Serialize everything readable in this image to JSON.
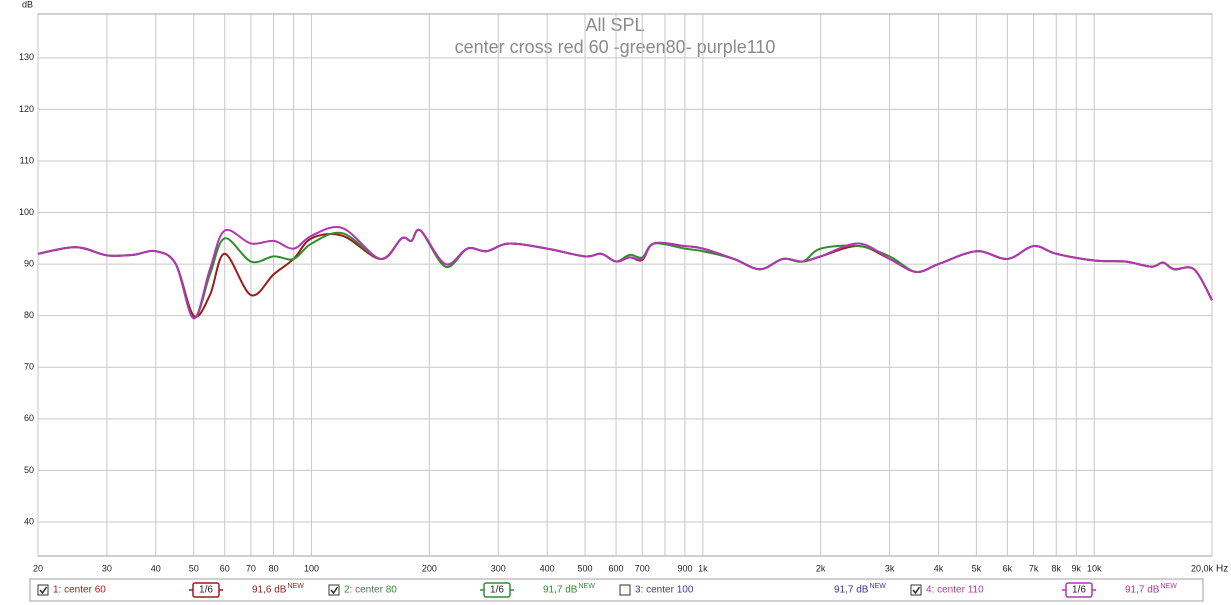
{
  "chart_data": {
    "type": "line",
    "title": "All SPL",
    "subtitle": "center cross red 60 -green80- purple110",
    "y_label": "dB",
    "x_label": "Hz",
    "x_scale": "log",
    "grid": true,
    "xlim": [
      20,
      20000
    ],
    "ylim": [
      33.4,
      138.5
    ],
    "yticks": [
      40,
      50,
      60,
      70,
      80,
      90,
      100,
      110,
      120,
      130
    ],
    "xticks": [
      20,
      30,
      40,
      50,
      60,
      70,
      80,
      100,
      200,
      300,
      400,
      500,
      600,
      700,
      900,
      {
        "value": 1000,
        "label": "1k"
      },
      {
        "value": 2000,
        "label": "2k"
      },
      {
        "value": 3000,
        "label": "3k"
      },
      {
        "value": 4000,
        "label": "4k"
      },
      {
        "value": 5000,
        "label": "5k"
      },
      {
        "value": 6000,
        "label": "6k"
      },
      {
        "value": 7000,
        "label": "7k"
      },
      {
        "value": 8000,
        "label": "8k"
      },
      {
        "value": 9000,
        "label": "9k"
      },
      {
        "value": 10000,
        "label": "10k"
      },
      {
        "value": 20000,
        "label": "20,0k"
      }
    ],
    "xgrid_minor": [
      90,
      800
    ],
    "x": [
      20,
      25,
      30,
      35,
      40,
      45,
      50,
      55,
      60,
      70,
      80,
      90,
      100,
      120,
      150,
      170,
      180,
      190,
      220,
      250,
      280,
      320,
      400,
      500,
      550,
      600,
      650,
      700,
      750,
      900,
      1000,
      1200,
      1400,
      1600,
      1800,
      2000,
      2500,
      3000,
      3500,
      4000,
      5000,
      6000,
      7000,
      8000,
      10000,
      12000,
      14000,
      15000,
      16000,
      18000,
      20000
    ],
    "series": [
      {
        "name": "1: center 60",
        "color": "#9b1c1c",
        "checked": true,
        "smoothing": "1/6",
        "level": "91,6 dB",
        "badge": "NEW",
        "values": [
          92,
          93.3,
          91.7,
          91.8,
          92.5,
          90,
          80,
          84,
          92,
          84,
          88,
          91,
          95,
          95.5,
          91,
          95,
          94.5,
          96.5,
          89.5,
          93,
          92.5,
          94,
          93,
          91.5,
          92,
          90.5,
          91.3,
          90.8,
          94,
          93.5,
          93,
          91,
          89,
          91,
          90.5,
          91.5,
          93.5,
          91,
          88.5,
          90,
          92.5,
          91,
          93.5,
          92,
          90.7,
          90.5,
          89.5,
          90.3,
          89,
          89,
          83
        ]
      },
      {
        "name": "2: center 80",
        "color": "#2f8f2f",
        "checked": true,
        "smoothing": "1/6",
        "level": "91,7 dB",
        "badge": "NEW",
        "values": [
          92,
          93.3,
          91.7,
          91.8,
          92.5,
          90,
          79.5,
          88,
          95,
          90.5,
          91.5,
          91,
          94,
          96,
          91,
          95,
          94.5,
          96.5,
          89.5,
          93,
          92.5,
          94,
          93,
          91.5,
          92,
          90.5,
          91.8,
          91.3,
          94,
          93,
          92.5,
          91,
          89,
          91,
          90.5,
          93,
          93.5,
          91.5,
          88.5,
          90,
          92.5,
          91,
          93.5,
          92,
          90.7,
          90.5,
          89.5,
          90.3,
          89,
          89,
          83
        ]
      },
      {
        "name": "3: center 100",
        "color": "#3a3aa0",
        "checked": false,
        "level": "91,7 dB",
        "badge": "NEW",
        "values": [
          null,
          null,
          null,
          null,
          null,
          null,
          null,
          null,
          null,
          null,
          null,
          null,
          null,
          null,
          null,
          null,
          null,
          null,
          null,
          null,
          null,
          null,
          null,
          null,
          null,
          null,
          null,
          null,
          null,
          null,
          null,
          null,
          null,
          null,
          null,
          null,
          null,
          null,
          null,
          null,
          null,
          null,
          null,
          null,
          null,
          null,
          null,
          null,
          null,
          null,
          null
        ]
      },
      {
        "name": "4: center 110",
        "color": "#b236b2",
        "checked": true,
        "smoothing": "1/6",
        "level": "91,7 dB",
        "badge": "NEW",
        "values": [
          92,
          93.3,
          91.7,
          91.8,
          92.5,
          90,
          79.5,
          89,
          96.5,
          94,
          94.5,
          93,
          95.5,
          97,
          91,
          95,
          94.5,
          96.5,
          90,
          93,
          92.5,
          94,
          93,
          91.5,
          92,
          90.5,
          91.3,
          91,
          94,
          93.5,
          93,
          91,
          89,
          91,
          90.5,
          91.5,
          94,
          91,
          88.5,
          90,
          92.5,
          91,
          93.5,
          92,
          90.7,
          90.5,
          89.5,
          90.3,
          89,
          89,
          83
        ]
      }
    ]
  }
}
